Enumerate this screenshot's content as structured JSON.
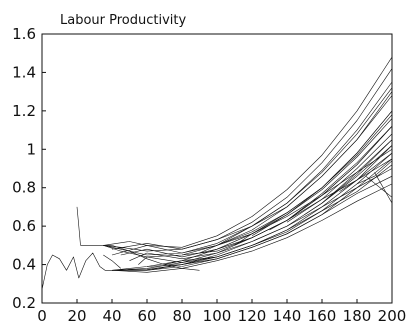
{
  "chart_data": {
    "type": "line",
    "title": "Labour Productivity",
    "xlabel": "",
    "ylabel": "",
    "xlim": [
      0,
      200
    ],
    "ylim": [
      0.2,
      1.6
    ],
    "xticks": [
      0,
      20,
      40,
      60,
      80,
      100,
      120,
      140,
      160,
      180,
      200
    ],
    "yticks": [
      0.2,
      0.4,
      0.6,
      0.8,
      1,
      1.2,
      1.4,
      1.6
    ],
    "ytick_labels": [
      "0.2",
      "0.4",
      "0.6",
      "0.8",
      "1",
      "1.2",
      "1.4",
      "1.6"
    ],
    "grid": false,
    "legend": "none",
    "line_color": "#111111",
    "series": [
      {
        "x": [
          0,
          3,
          6,
          10,
          14,
          18,
          21,
          25,
          29,
          33,
          36,
          40
        ],
        "y": [
          0.27,
          0.4,
          0.45,
          0.43,
          0.37,
          0.44,
          0.33,
          0.42,
          0.46,
          0.39,
          0.37,
          0.37
        ]
      },
      {
        "x": [
          20,
          21,
          22
        ],
        "y": [
          0.7,
          0.6,
          0.5
        ]
      },
      {
        "x": [
          22,
          35
        ],
        "y": [
          0.5,
          0.5
        ]
      },
      {
        "x": [
          35,
          40,
          50,
          60,
          70,
          80,
          90
        ],
        "y": [
          0.5,
          0.5,
          0.47,
          0.43,
          0.4,
          0.38,
          0.37
        ]
      },
      {
        "x": [
          35,
          40,
          45
        ],
        "y": [
          0.45,
          0.42,
          0.38
        ]
      },
      {
        "x": [
          40,
          60,
          80,
          100,
          120,
          140,
          160,
          180,
          200
        ],
        "y": [
          0.37,
          0.375,
          0.4,
          0.45,
          0.52,
          0.6,
          0.7,
          0.8,
          0.9
        ]
      },
      {
        "x": [
          40,
          60,
          80,
          100,
          120,
          140,
          160,
          180,
          200
        ],
        "y": [
          0.37,
          0.37,
          0.39,
          0.43,
          0.49,
          0.56,
          0.66,
          0.77,
          0.86
        ]
      },
      {
        "x": [
          40,
          60,
          80,
          100,
          120,
          140,
          160,
          180,
          200
        ],
        "y": [
          0.37,
          0.38,
          0.41,
          0.46,
          0.54,
          0.63,
          0.74,
          0.84,
          0.95
        ]
      },
      {
        "x": [
          40,
          60,
          80,
          100,
          120,
          140,
          160,
          180,
          200
        ],
        "y": [
          0.37,
          0.36,
          0.38,
          0.42,
          0.47,
          0.54,
          0.63,
          0.73,
          0.82
        ]
      },
      {
        "x": [
          40,
          60,
          80,
          100,
          120,
          140,
          160,
          180,
          200
        ],
        "y": [
          0.37,
          0.39,
          0.42,
          0.48,
          0.56,
          0.65,
          0.76,
          0.88,
          1.0
        ]
      },
      {
        "x": [
          40,
          60,
          80,
          100,
          120,
          140,
          160,
          180,
          200
        ],
        "y": [
          0.37,
          0.37,
          0.4,
          0.44,
          0.5,
          0.58,
          0.68,
          0.78,
          0.92
        ]
      },
      {
        "x": [
          35,
          45,
          60,
          80,
          100,
          120,
          140,
          160,
          180,
          200
        ],
        "y": [
          0.5,
          0.47,
          0.44,
          0.45,
          0.5,
          0.58,
          0.7,
          0.86,
          1.05,
          1.28
        ]
      },
      {
        "x": [
          35,
          45,
          60,
          80,
          100,
          120,
          140,
          160,
          180,
          200
        ],
        "y": [
          0.5,
          0.49,
          0.47,
          0.48,
          0.53,
          0.62,
          0.75,
          0.93,
          1.15,
          1.42
        ]
      },
      {
        "x": [
          35,
          45,
          60,
          80,
          100,
          120,
          140,
          160,
          180,
          200
        ],
        "y": [
          0.5,
          0.48,
          0.45,
          0.46,
          0.51,
          0.6,
          0.72,
          0.89,
          1.1,
          1.35
        ]
      },
      {
        "x": [
          40,
          60,
          80,
          100,
          120,
          140,
          160,
          180,
          200
        ],
        "y": [
          0.45,
          0.5,
          0.46,
          0.5,
          0.56,
          0.66,
          0.8,
          0.98,
          1.2
        ]
      },
      {
        "x": [
          40,
          60,
          80,
          100,
          120,
          140,
          160,
          180,
          200
        ],
        "y": [
          0.48,
          0.51,
          0.48,
          0.53,
          0.6,
          0.72,
          0.88,
          1.08,
          1.32
        ]
      },
      {
        "x": [
          45,
          60,
          80,
          100,
          120,
          140,
          160,
          180,
          200
        ],
        "y": [
          0.45,
          0.48,
          0.44,
          0.48,
          0.54,
          0.63,
          0.76,
          0.92,
          1.12
        ]
      },
      {
        "x": [
          35,
          50,
          60,
          80,
          100,
          120,
          140,
          160,
          180,
          200
        ],
        "y": [
          0.5,
          0.52,
          0.5,
          0.49,
          0.55,
          0.65,
          0.79,
          0.97,
          1.2,
          1.48
        ]
      },
      {
        "x": [
          50,
          60,
          80,
          100,
          120,
          140,
          160,
          180,
          200
        ],
        "y": [
          0.42,
          0.46,
          0.43,
          0.46,
          0.52,
          0.6,
          0.72,
          0.87,
          1.05
        ]
      },
      {
        "x": [
          55,
          60,
          80,
          100,
          120,
          140,
          160,
          180,
          200
        ],
        "y": [
          0.4,
          0.44,
          0.41,
          0.44,
          0.5,
          0.57,
          0.68,
          0.82,
          0.98
        ]
      },
      {
        "x": [
          60,
          80,
          100,
          120,
          140,
          160,
          180,
          200
        ],
        "y": [
          0.39,
          0.4,
          0.43,
          0.49,
          0.56,
          0.66,
          0.8,
          0.95
        ]
      },
      {
        "x": [
          70,
          80,
          100,
          120,
          140,
          160,
          180,
          200
        ],
        "y": [
          0.4,
          0.42,
          0.44,
          0.5,
          0.58,
          0.7,
          0.84,
          1.02
        ]
      },
      {
        "x": [
          80,
          100,
          120,
          140,
          160,
          180,
          200
        ],
        "y": [
          0.45,
          0.47,
          0.54,
          0.63,
          0.76,
          0.92,
          1.12
        ]
      },
      {
        "x": [
          90,
          100,
          120,
          140,
          160,
          180,
          200
        ],
        "y": [
          0.46,
          0.5,
          0.57,
          0.67,
          0.8,
          0.98,
          1.2
        ]
      },
      {
        "x": [
          100,
          120,
          140,
          160,
          180,
          200
        ],
        "y": [
          0.5,
          0.6,
          0.7,
          0.86,
          1.05,
          1.3
        ]
      },
      {
        "x": [
          110,
          120,
          140,
          160,
          180,
          200
        ],
        "y": [
          0.5,
          0.56,
          0.67,
          0.8,
          0.97,
          1.18
        ]
      },
      {
        "x": [
          120,
          140,
          160,
          180,
          200
        ],
        "y": [
          0.55,
          0.66,
          0.79,
          0.96,
          1.16
        ]
      },
      {
        "x": [
          130,
          140,
          160,
          180,
          200
        ],
        "y": [
          0.58,
          0.63,
          0.77,
          0.93,
          1.12
        ]
      },
      {
        "x": [
          140,
          160,
          180,
          200
        ],
        "y": [
          0.62,
          0.74,
          0.9,
          1.08
        ]
      },
      {
        "x": [
          150,
          160,
          180,
          200
        ],
        "y": [
          0.66,
          0.72,
          0.88,
          1.05
        ]
      },
      {
        "x": [
          160,
          180,
          200
        ],
        "y": [
          0.72,
          0.86,
          1.02
        ]
      },
      {
        "x": [
          170,
          180,
          200
        ],
        "y": [
          0.78,
          0.84,
          0.98
        ]
      },
      {
        "x": [
          180,
          190,
          200
        ],
        "y": [
          0.82,
          0.86,
          0.94
        ]
      },
      {
        "x": [
          185,
          200
        ],
        "y": [
          0.86,
          0.75
        ]
      },
      {
        "x": [
          190,
          200
        ],
        "y": [
          0.88,
          0.72
        ]
      }
    ]
  }
}
